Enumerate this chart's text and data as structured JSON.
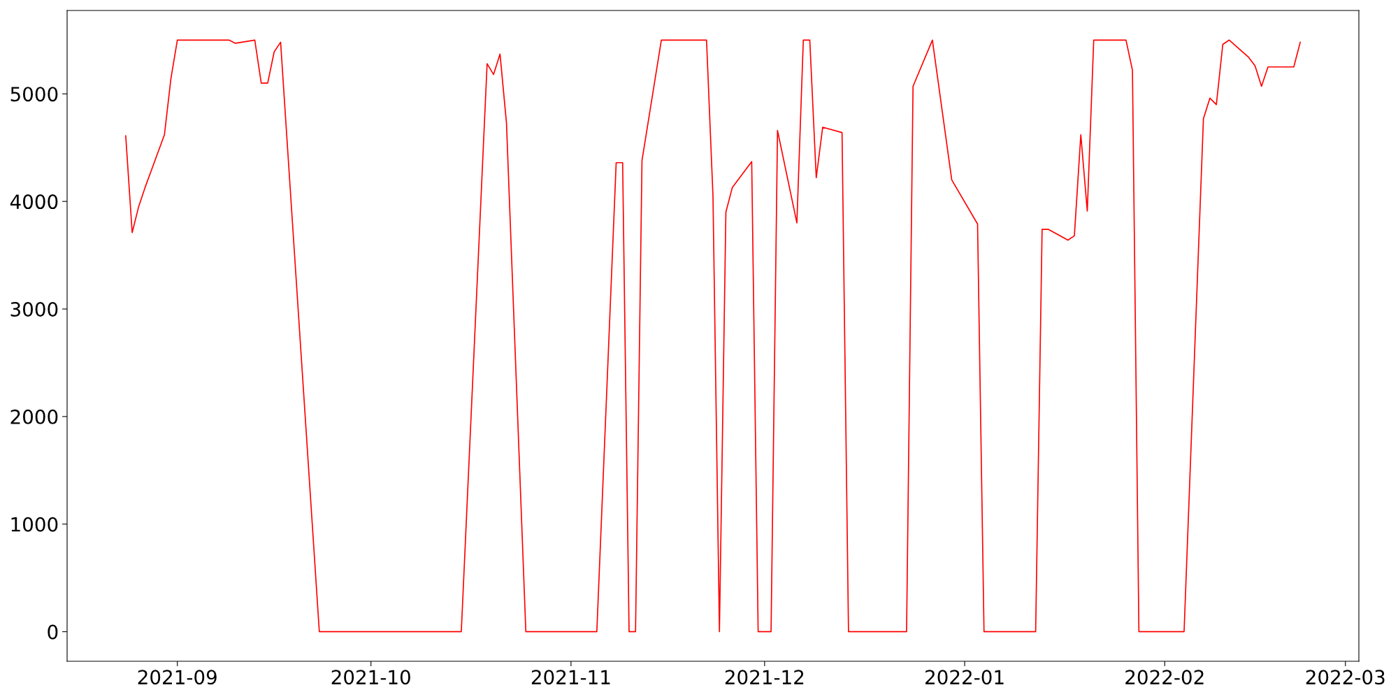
{
  "chart_data": {
    "type": "line",
    "x": [
      "2021-08-24",
      "2021-08-25",
      "2021-08-26",
      "2021-08-27",
      "2021-08-30",
      "2021-08-31",
      "2021-09-01",
      "2021-09-09",
      "2021-09-10",
      "2021-09-13",
      "2021-09-14",
      "2021-09-15",
      "2021-09-16",
      "2021-09-17",
      "2021-09-23",
      "2021-10-15",
      "2021-10-19",
      "2021-10-20",
      "2021-10-21",
      "2021-10-22",
      "2021-10-25",
      "2021-11-05",
      "2021-11-08",
      "2021-11-09",
      "2021-11-10",
      "2021-11-11",
      "2021-11-12",
      "2021-11-15",
      "2021-11-22",
      "2021-11-23",
      "2021-11-24",
      "2021-11-25",
      "2021-11-26",
      "2021-11-29",
      "2021-11-30",
      "2021-12-02",
      "2021-12-03",
      "2021-12-06",
      "2021-12-07",
      "2021-12-08",
      "2021-12-09",
      "2021-12-10",
      "2021-12-13",
      "2021-12-14",
      "2021-12-23",
      "2021-12-24",
      "2021-12-27",
      "2021-12-30",
      "2022-01-03",
      "2022-01-04",
      "2022-01-12",
      "2022-01-13",
      "2022-01-14",
      "2022-01-17",
      "2022-01-18",
      "2022-01-19",
      "2022-01-20",
      "2022-01-21",
      "2022-01-26",
      "2022-01-27",
      "2022-01-28",
      "2022-02-04",
      "2022-02-07",
      "2022-02-08",
      "2022-02-09",
      "2022-02-10",
      "2022-02-11",
      "2022-02-14",
      "2022-02-15",
      "2022-02-16",
      "2022-02-17",
      "2022-02-21",
      "2022-02-22"
    ],
    "series": [
      {
        "color": "#ff0000",
        "values": [
          4610,
          3710,
          3950,
          4130,
          4620,
          5140,
          5500,
          5500,
          5470,
          5500,
          5100,
          5100,
          5390,
          5480,
          0,
          0,
          5280,
          5180,
          5370,
          4730,
          0,
          0,
          4360,
          4360,
          0,
          0,
          4380,
          5500,
          5500,
          4050,
          0,
          3900,
          4130,
          4370,
          0,
          0,
          4660,
          3800,
          5500,
          5500,
          4220,
          4690,
          4640,
          0,
          0,
          5070,
          5500,
          4200,
          3790,
          0,
          0,
          3740,
          3740,
          3640,
          3680,
          4620,
          3910,
          5500,
          5500,
          5220,
          0,
          0,
          4770,
          4960,
          4900,
          5460,
          5500,
          5340,
          5260,
          5070,
          5250,
          5250,
          5480
        ]
      }
    ],
    "xlim": [
      "2021-08-14T22:00",
      "2022-03-03T02:00"
    ],
    "ylim": [
      -275,
      5775
    ],
    "xticks": [
      "2021-09",
      "2021-10",
      "2021-11",
      "2021-12",
      "2022-01",
      "2022-02",
      "2022-03"
    ],
    "yticks": [
      0,
      1000,
      2000,
      3000,
      4000,
      5000
    ],
    "grid": false,
    "marker": "none",
    "line_style": "solid"
  }
}
